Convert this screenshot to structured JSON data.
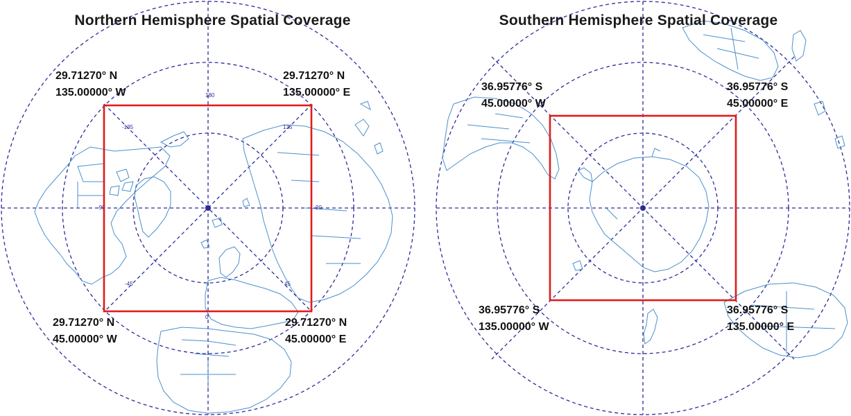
{
  "figure": {
    "colors": {
      "grid": "#2b2b9a",
      "coastline": "#4a8fcb",
      "box": "#e01b1b",
      "text": "#111111"
    },
    "panels": [
      {
        "id": "north",
        "title": "Northern Hemisphere Spatial Coverage",
        "pole": "north-pole",
        "graticule_labels": [
          "180",
          "-135",
          "135",
          "-90",
          "90",
          "-45",
          "45",
          "0"
        ],
        "corners": {
          "top_left": {
            "lat": "29.71270° N",
            "lon": "135.00000° W"
          },
          "top_right": {
            "lat": "29.71270° N",
            "lon": "135.00000° E"
          },
          "bottom_left": {
            "lat": "29.71270° N",
            "lon": "45.00000° W"
          },
          "bottom_right": {
            "lat": "29.71270° N",
            "lon": "45.00000° E"
          }
        }
      },
      {
        "id": "south",
        "title": "Southern Hemisphere Spatial Coverage",
        "pole": "south-pole",
        "corners": {
          "top_left": {
            "lat": "36.95776° S",
            "lon": "45.00000° W"
          },
          "top_right": {
            "lat": "36.95776° S",
            "lon": "45.00000° E"
          },
          "bottom_left": {
            "lat": "36.95776° S",
            "lon": "135.00000° W"
          },
          "bottom_right": {
            "lat": "36.95776° S",
            "lon": "135.00000° E"
          }
        }
      }
    ]
  }
}
